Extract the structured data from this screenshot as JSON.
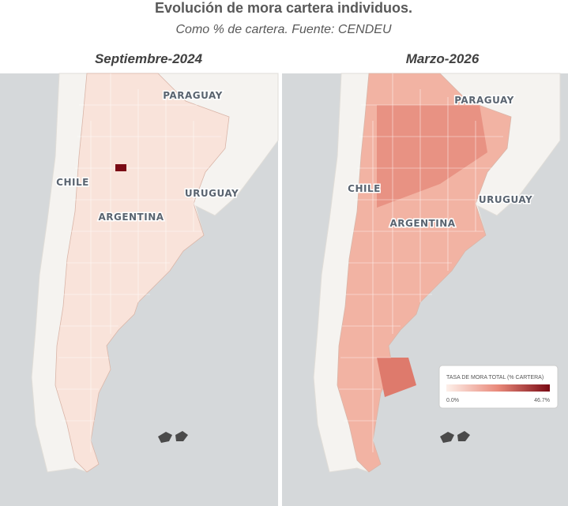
{
  "header": {
    "title": "Evolución de mora cartera individuos.",
    "subtitle": "Como % de cartera. Fuente: CENDEU"
  },
  "maps": [
    {
      "title": "Septiembre-2024",
      "labels": [
        "PARAGUAY",
        "CHILE",
        "URUGUAY",
        "ARGENTINA"
      ]
    },
    {
      "title": "Marzo-2026",
      "labels": [
        "PARAGUAY",
        "CHILE",
        "URUGUAY",
        "ARGENTINA"
      ],
      "legend": {
        "title": "TASA DE MORA TOTAL (% CARTERA)",
        "min": "0.0%",
        "max": "46.7%"
      }
    }
  ]
}
